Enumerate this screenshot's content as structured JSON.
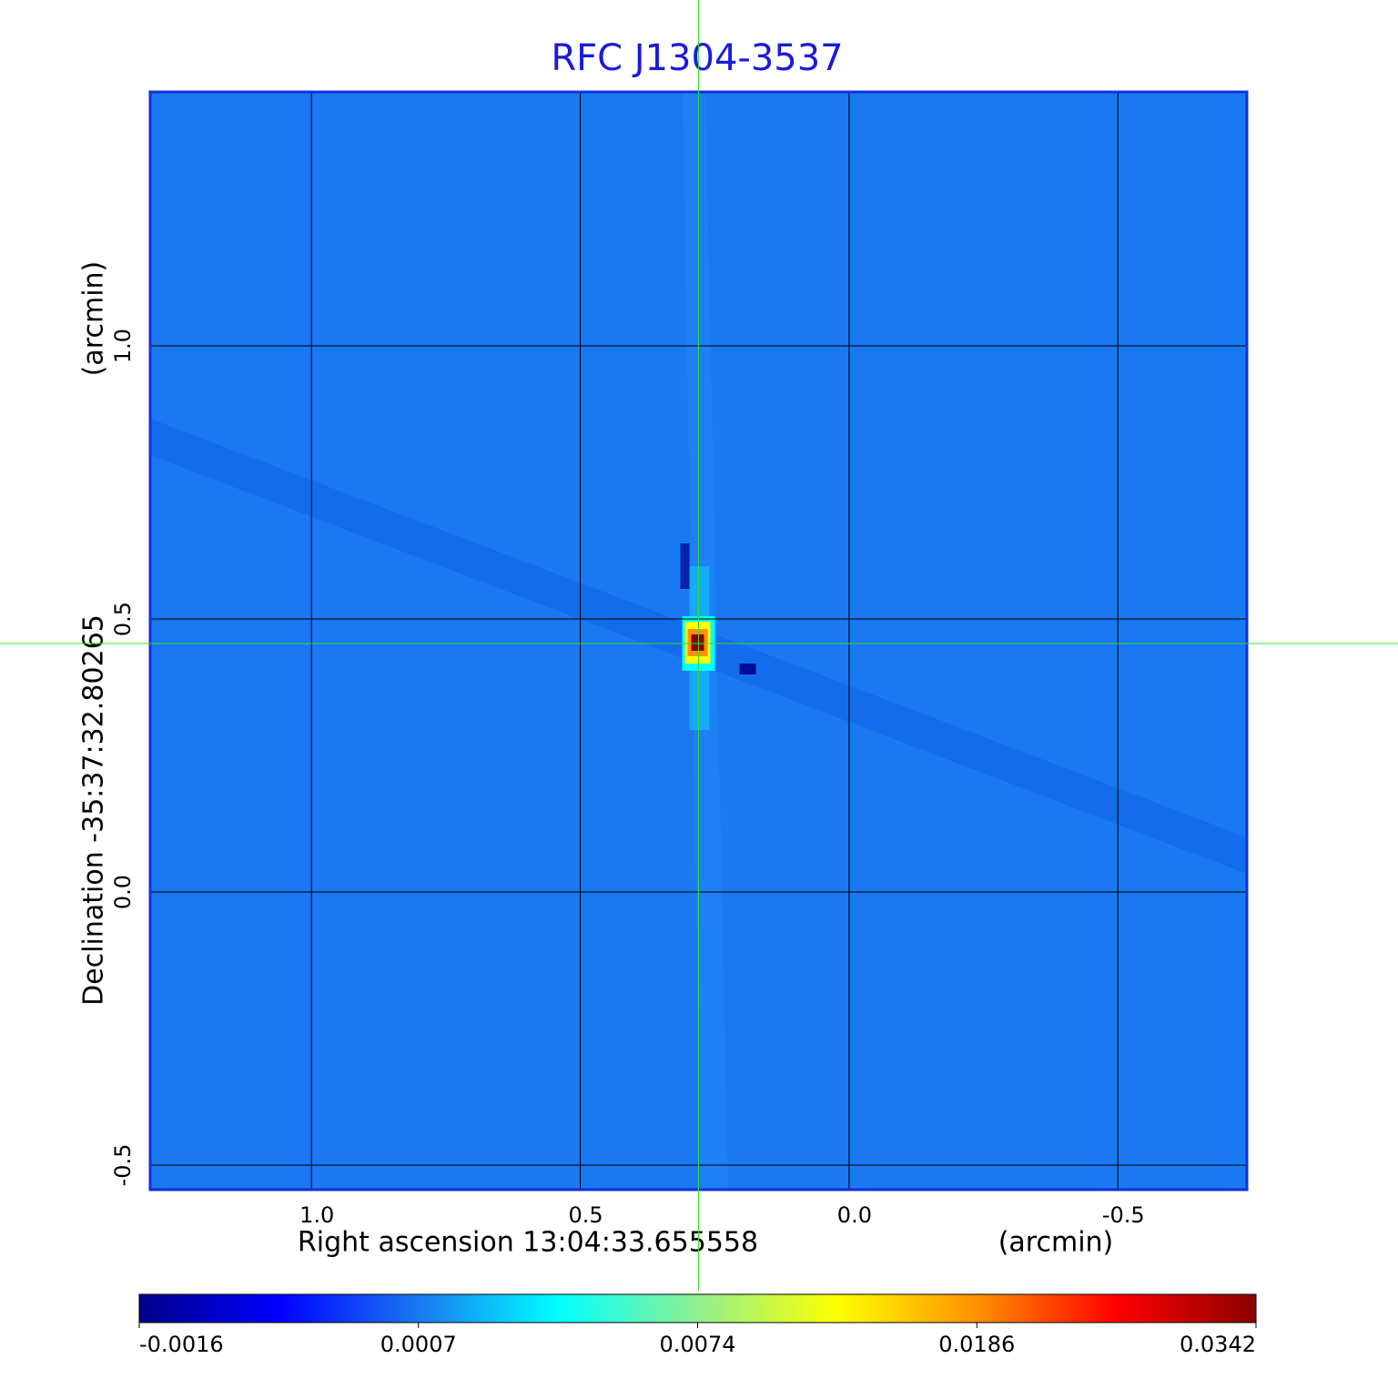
{
  "chart_data": {
    "type": "image",
    "title": "RFC J1304-3537",
    "x_label": "Right ascension  13:04:33.655558",
    "x_unit": "(arcmin)",
    "y_label": "Declination  -35:37:32.80265",
    "y_unit": "(arcmin)",
    "xlim": [
      1.3,
      -0.74
    ],
    "ylim": [
      -0.545,
      1.465
    ],
    "xticks": [
      {
        "value": 1.0,
        "label": "1.0"
      },
      {
        "value": 0.5,
        "label": "0.5"
      },
      {
        "value": 0.0,
        "label": "0.0"
      },
      {
        "value": -0.5,
        "label": "-0.5"
      }
    ],
    "yticks": [
      {
        "value": -0.5,
        "label": "-0.5"
      },
      {
        "value": 0.0,
        "label": "0.0"
      },
      {
        "value": 0.5,
        "label": "0.5"
      },
      {
        "value": 1.0,
        "label": "1.0"
      }
    ],
    "grid": true,
    "crosshair": [
      0.28,
      0.455
    ],
    "background_color": "#1a78f2",
    "colormap": [
      "#00008a",
      "#0000ff",
      "#1a78f2",
      "#00ffff",
      "#90f090",
      "#ffff00",
      "#ff9000",
      "#ff0000",
      "#8b0000"
    ],
    "colorbar_ticks": [
      -0.0016,
      0.0007,
      0.0074,
      0.0186,
      0.0342
    ]
  }
}
